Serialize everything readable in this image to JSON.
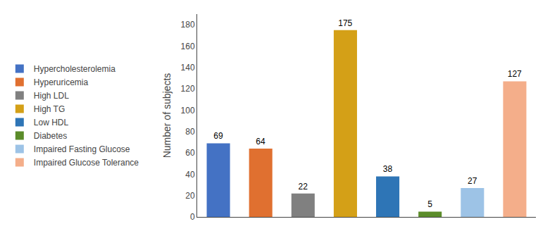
{
  "chart_data": {
    "type": "bar",
    "categories": [
      "Hypercholesterolemia",
      "Hyperuricemia",
      "High LDL",
      "High TG",
      "Low HDL",
      "Diabetes",
      "Impaired Fasting Glucose",
      "Impaired Glucose Tolerance"
    ],
    "values": [
      69,
      64,
      22,
      175,
      38,
      5,
      27,
      127
    ],
    "colors": [
      "#4472C4",
      "#E07030",
      "#808080",
      "#D4A017",
      "#2E75B6",
      "#5B8C2A",
      "#9DC3E6",
      "#F4AE8A"
    ],
    "ylabel": "Number of subjects",
    "ylim": [
      0,
      190
    ],
    "yticks": [
      0,
      20,
      40,
      60,
      80,
      100,
      120,
      140,
      160,
      180
    ],
    "data_labels": true,
    "tick_labels": "y",
    "legend": "left",
    "grid": false
  }
}
